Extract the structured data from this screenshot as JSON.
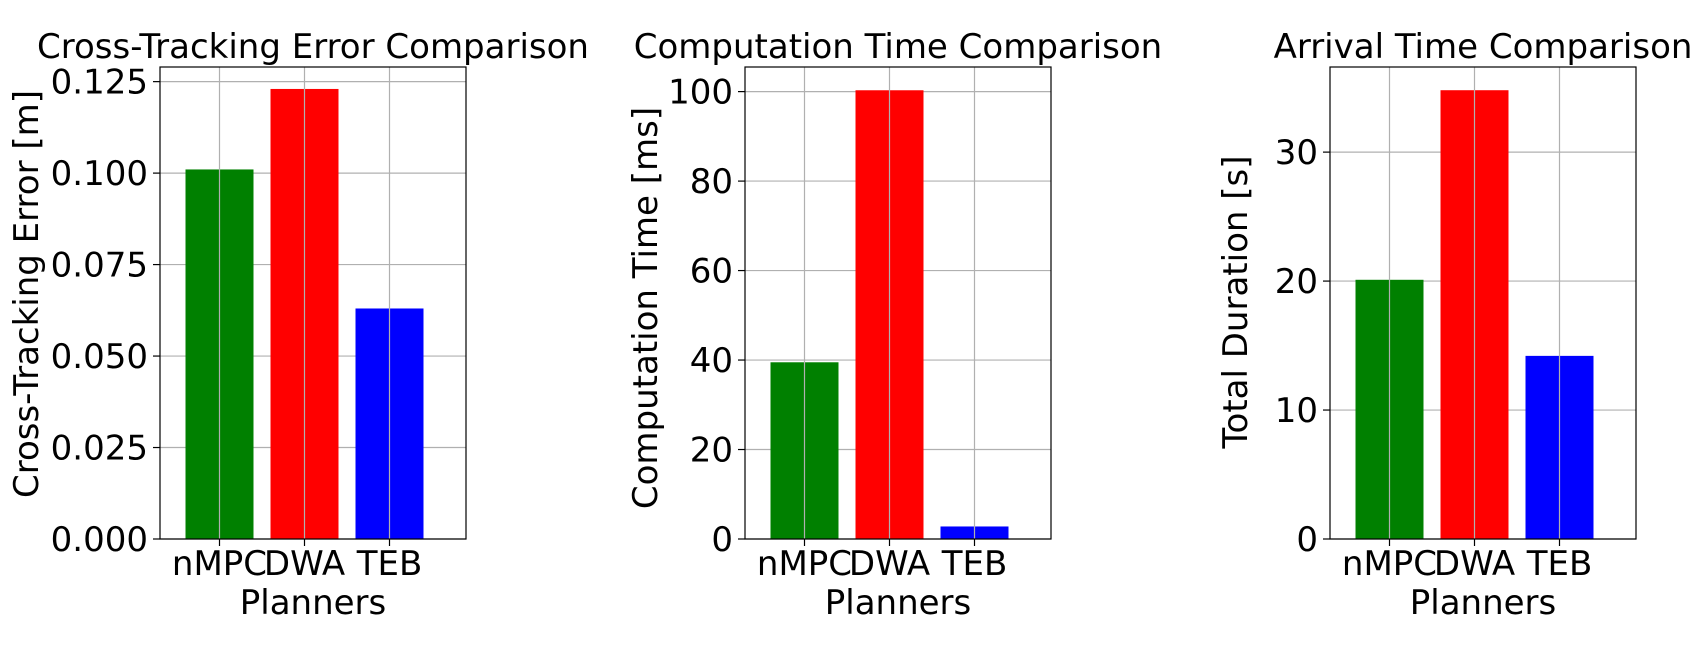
{
  "chart_data": [
    {
      "type": "bar",
      "title": "Cross-Tracking Error Comparison",
      "xlabel": "Planners",
      "ylabel": "Cross-Tracking Error [m]",
      "categories": [
        "nMPC",
        "DWA",
        "TEB"
      ],
      "values": [
        0.101,
        0.123,
        0.063
      ],
      "colors": [
        "#008000",
        "#ff0000",
        "#0000ff"
      ],
      "ylim": [
        0,
        0.129
      ],
      "yticks": [
        0,
        0.025,
        0.05,
        0.075,
        0.1,
        0.125
      ],
      "ytick_labels": [
        "0.000",
        "0.025",
        "0.050",
        "0.075",
        "0.100",
        "0.125"
      ],
      "grid": true
    },
    {
      "type": "bar",
      "title": "Computation Time Comparison",
      "xlabel": "Planners",
      "ylabel": "Computation Time [ms]",
      "categories": [
        "nMPC",
        "DWA",
        "TEB"
      ],
      "values": [
        39.5,
        100.3,
        2.8
      ],
      "colors": [
        "#008000",
        "#ff0000",
        "#0000ff"
      ],
      "ylim": [
        0,
        105.5
      ],
      "yticks": [
        0,
        20,
        40,
        60,
        80,
        100
      ],
      "ytick_labels": [
        "0",
        "20",
        "40",
        "60",
        "80",
        "100"
      ],
      "grid": true
    },
    {
      "type": "bar",
      "title": "Arrival Time Comparison",
      "xlabel": "Planners",
      "ylabel": "Total Duration [s]",
      "categories": [
        "nMPC",
        "DWA",
        "TEB"
      ],
      "values": [
        20.1,
        34.8,
        14.2
      ],
      "colors": [
        "#008000",
        "#ff0000",
        "#0000ff"
      ],
      "ylim": [
        0,
        36.6
      ],
      "yticks": [
        0,
        10,
        20,
        30
      ],
      "ytick_labels": [
        "0",
        "10",
        "20",
        "30"
      ],
      "grid": true
    }
  ]
}
